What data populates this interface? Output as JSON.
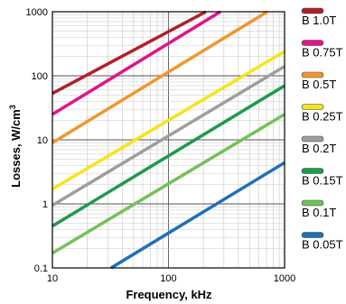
{
  "chart_data": {
    "type": "line",
    "title": "",
    "xlabel": "Frequency, kHz",
    "ylabel": "Losses, W/cm",
    "ylabel_sup": "3",
    "xscale": "log",
    "yscale": "log",
    "xlim": [
      10,
      1000
    ],
    "ylim": [
      0.1,
      1000
    ],
    "grid": true,
    "legend_position": "right",
    "x_ticks": [
      "10",
      "100",
      "1000"
    ],
    "y_ticks": [
      "0.1",
      "1",
      "10",
      "100",
      "1000"
    ],
    "series": [
      {
        "name": "B 1.0T",
        "color": "#b0202a",
        "x": [
          10,
          210
        ],
        "y": [
          53,
          1000
        ]
      },
      {
        "name": "B 0.75T",
        "color": "#e0148a",
        "x": [
          10,
          280
        ],
        "y": [
          25,
          1000
        ]
      },
      {
        "name": "B 0.5T",
        "color": "#f0962e",
        "x": [
          10,
          710
        ],
        "y": [
          9,
          1000
        ]
      },
      {
        "name": "B 0.25T",
        "color": "#f5e41a",
        "x": [
          10,
          1000
        ],
        "y": [
          1.7,
          240
        ]
      },
      {
        "name": "B 0.2T",
        "color": "#9e9e9e",
        "x": [
          10,
          1000
        ],
        "y": [
          0.95,
          140
        ]
      },
      {
        "name": "B 0.15T",
        "color": "#1e9a4c",
        "x": [
          10,
          1000
        ],
        "y": [
          0.45,
          70
        ]
      },
      {
        "name": "B 0.1T",
        "color": "#72c25a",
        "x": [
          10,
          1000
        ],
        "y": [
          0.17,
          25
        ]
      },
      {
        "name": "B 0.05T",
        "color": "#1e6fb8",
        "x": [
          32,
          1000
        ],
        "y": [
          0.1,
          4.4
        ]
      }
    ]
  }
}
